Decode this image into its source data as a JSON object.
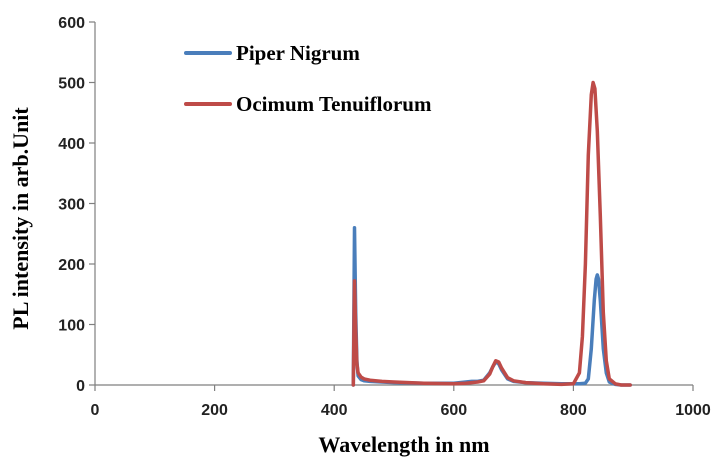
{
  "chart_data": {
    "type": "line",
    "title": "",
    "xlabel": "Wavelength in nm",
    "ylabel": "PL intensity in arb.Unit",
    "xlim": [
      0,
      1000
    ],
    "ylim": [
      0,
      600
    ],
    "x_ticks": [
      0,
      200,
      400,
      600,
      800,
      1000
    ],
    "y_ticks": [
      0,
      100,
      200,
      300,
      400,
      500,
      600
    ],
    "x_tick_labels": [
      "0",
      "200",
      "400",
      "600",
      "800",
      "1000"
    ],
    "y_tick_labels": [
      "0",
      "100",
      "200",
      "300",
      "400",
      "500",
      "600"
    ],
    "grid": false,
    "legend_position": "top-left",
    "series": [
      {
        "name": "Piper Nigrum",
        "color": "#4a7ebb",
        "x": [
          432,
          434,
          436,
          438,
          440,
          445,
          450,
          460,
          480,
          500,
          550,
          600,
          620,
          630,
          640,
          650,
          660,
          665,
          670,
          675,
          680,
          690,
          700,
          720,
          750,
          780,
          800,
          810,
          820,
          825,
          830,
          835,
          838,
          840,
          842,
          845,
          850,
          855,
          860,
          870,
          880,
          895
        ],
        "y": [
          0,
          260,
          120,
          40,
          15,
          9,
          7,
          6,
          5,
          4,
          3,
          3,
          5,
          6,
          6,
          8,
          20,
          30,
          38,
          35,
          25,
          10,
          6,
          4,
          3,
          2,
          2,
          2,
          3,
          10,
          60,
          140,
          175,
          182,
          175,
          140,
          60,
          20,
          5,
          1,
          0,
          0
        ]
      },
      {
        "name": "Ocimum Tenuiflorum",
        "color": "#be4b48",
        "x": [
          432,
          434,
          436,
          438,
          440,
          445,
          450,
          460,
          480,
          500,
          550,
          600,
          620,
          630,
          640,
          650,
          660,
          665,
          670,
          675,
          680,
          690,
          700,
          720,
          750,
          780,
          800,
          810,
          815,
          820,
          825,
          830,
          833,
          836,
          840,
          845,
          850,
          855,
          860,
          870,
          880,
          895
        ],
        "y": [
          0,
          172,
          90,
          35,
          20,
          13,
          10,
          8,
          6,
          5,
          3,
          2,
          3,
          4,
          5,
          7,
          18,
          30,
          40,
          38,
          28,
          12,
          7,
          4,
          2,
          1,
          2,
          20,
          80,
          200,
          380,
          480,
          500,
          490,
          420,
          280,
          120,
          40,
          10,
          2,
          0,
          0
        ]
      }
    ]
  }
}
